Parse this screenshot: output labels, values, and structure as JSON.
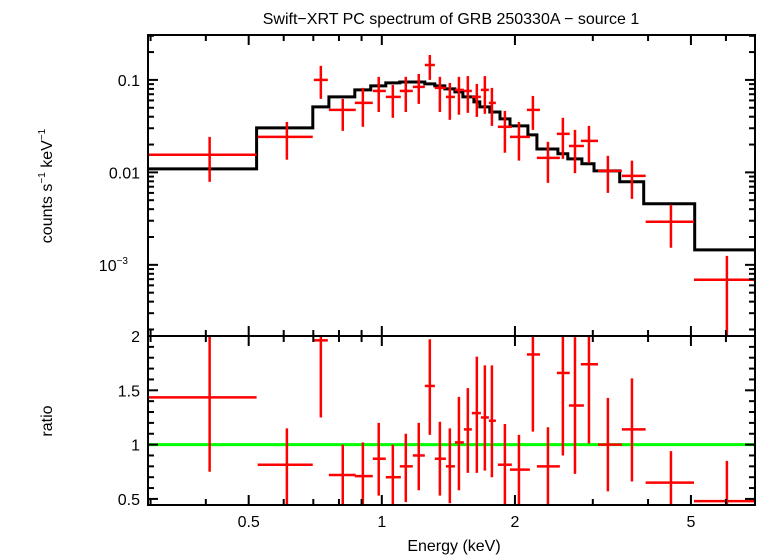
{
  "chart_data": [
    {
      "type": "line",
      "panel": "spectrum",
      "title": "Swift−XRT PC spectrum of GRB 250330A − source 1",
      "ylabel_main": "counts s",
      "ylabel_sup1": "−1",
      "ylabel_mid": " keV",
      "ylabel_sup2": "−1",
      "xscale": "log",
      "yscale": "log",
      "xlim": [
        0.296,
        6.98
      ],
      "ylim": [
        0.00017,
        0.306
      ],
      "yticks": [
        {
          "value": 0.1,
          "label": "0.1"
        },
        {
          "value": 0.01,
          "label": "0.01"
        },
        {
          "value": 0.001,
          "label": "10",
          "sup": "−3"
        }
      ],
      "colors": {
        "data": "#ff0000",
        "model": "#000000"
      },
      "data_points": [
        {
          "xlo": 0.296,
          "xhi": 0.521,
          "x": 0.408,
          "y": 0.0155,
          "ylo": 0.0079,
          "yhi": 0.0242
        },
        {
          "xlo": 0.524,
          "xhi": 0.698,
          "x": 0.61,
          "y": 0.0242,
          "ylo": 0.0137,
          "yhi": 0.0351
        },
        {
          "xlo": 0.702,
          "xhi": 0.755,
          "x": 0.728,
          "y": 0.1,
          "ylo": 0.0624,
          "yhi": 0.142
        },
        {
          "xlo": 0.759,
          "xhi": 0.873,
          "x": 0.816,
          "y": 0.0474,
          "ylo": 0.0281,
          "yhi": 0.0624
        },
        {
          "xlo": 0.869,
          "xhi": 0.954,
          "x": 0.906,
          "y": 0.0564,
          "ylo": 0.0311,
          "yhi": 0.082
        },
        {
          "xlo": 0.954,
          "xhi": 1.021,
          "x": 0.984,
          "y": 0.076,
          "ylo": 0.045,
          "yhi": 0.108
        },
        {
          "xlo": 1.021,
          "xhi": 1.104,
          "x": 1.059,
          "y": 0.0655,
          "ylo": 0.0389,
          "yhi": 0.0883
        },
        {
          "xlo": 1.098,
          "xhi": 1.175,
          "x": 1.133,
          "y": 0.076,
          "ylo": 0.045,
          "yhi": 0.108
        },
        {
          "xlo": 1.175,
          "xhi": 1.251,
          "x": 1.212,
          "y": 0.084,
          "ylo": 0.055,
          "yhi": 0.116
        },
        {
          "xlo": 1.251,
          "xhi": 1.318,
          "x": 1.284,
          "y": 0.145,
          "ylo": 0.1,
          "yhi": 0.186
        },
        {
          "xlo": 1.318,
          "xhi": 1.396,
          "x": 1.353,
          "y": 0.082,
          "ylo": 0.045,
          "yhi": 0.108
        },
        {
          "xlo": 1.396,
          "xhi": 1.463,
          "x": 1.425,
          "y": 0.0655,
          "ylo": 0.037,
          "yhi": 0.0928
        },
        {
          "xlo": 1.463,
          "xhi": 1.533,
          "x": 1.494,
          "y": 0.078,
          "ylo": 0.042,
          "yhi": 0.108
        },
        {
          "xlo": 1.533,
          "xhi": 1.598,
          "x": 1.565,
          "y": 0.076,
          "ylo": 0.044,
          "yhi": 0.11
        },
        {
          "xlo": 1.598,
          "xhi": 1.675,
          "x": 1.64,
          "y": 0.0655,
          "ylo": 0.0398,
          "yhi": 0.0905
        },
        {
          "xlo": 1.675,
          "xhi": 1.746,
          "x": 1.71,
          "y": 0.078,
          "ylo": 0.043,
          "yhi": 0.11
        },
        {
          "xlo": 1.746,
          "xhi": 1.811,
          "x": 1.774,
          "y": 0.0564,
          "ylo": 0.0318,
          "yhi": 0.082
        },
        {
          "xlo": 1.83,
          "xhi": 1.968,
          "x": 1.898,
          "y": 0.0311,
          "ylo": 0.0163,
          "yhi": 0.0462
        },
        {
          "xlo": 1.949,
          "xhi": 2.162,
          "x": 2.042,
          "y": 0.0242,
          "ylo": 0.0134,
          "yhi": 0.0351
        },
        {
          "xlo": 2.128,
          "xhi": 2.278,
          "x": 2.196,
          "y": 0.0474,
          "ylo": 0.0288,
          "yhi": 0.0671
        },
        {
          "xlo": 2.242,
          "xhi": 2.527,
          "x": 2.375,
          "y": 0.01436,
          "ylo": 0.0077,
          "yhi": 0.0214
        },
        {
          "xlo": 2.488,
          "xhi": 2.66,
          "x": 2.567,
          "y": 0.0261,
          "ylo": 0.014,
          "yhi": 0.0389
        },
        {
          "xlo": 2.649,
          "xhi": 2.864,
          "x": 2.734,
          "y": 0.0193,
          "ylo": 0.0098,
          "yhi": 0.0288
        },
        {
          "xlo": 2.819,
          "xhi": 3.082,
          "x": 2.94,
          "y": 0.0219,
          "ylo": 0.01268,
          "yhi": 0.0318
        },
        {
          "xlo": 3.082,
          "xhi": 3.49,
          "x": 3.245,
          "y": 0.01038,
          "ylo": 0.006,
          "yhi": 0.0151
        },
        {
          "xlo": 3.49,
          "xhi": 3.95,
          "x": 3.678,
          "y": 0.00917,
          "ylo": 0.00517,
          "yhi": 0.0134
        },
        {
          "xlo": 3.95,
          "xhi": 5.08,
          "x": 4.506,
          "y": 0.00292,
          "ylo": 0.00153,
          "yhi": 0.00446
        },
        {
          "xlo": 5.08,
          "xhi": 6.98,
          "x": 6.03,
          "y": 0.00069,
          "ylo": 0.0001,
          "yhi": 0.00125
        }
      ],
      "model_steps": [
        [
          0.296,
          0.521,
          0.0109
        ],
        [
          0.521,
          0.698,
          0.0303
        ],
        [
          0.698,
          0.759,
          0.0511
        ],
        [
          0.759,
          0.869,
          0.0655
        ],
        [
          0.869,
          0.944,
          0.078
        ],
        [
          0.944,
          1.021,
          0.0861
        ],
        [
          1.021,
          1.098,
          0.0928
        ],
        [
          1.098,
          1.251,
          0.095
        ],
        [
          1.251,
          1.318,
          0.0905
        ],
        [
          1.318,
          1.388,
          0.0861
        ],
        [
          1.388,
          1.463,
          0.08
        ],
        [
          1.463,
          1.525,
          0.0742
        ],
        [
          1.525,
          1.615,
          0.0655
        ],
        [
          1.615,
          1.666,
          0.0578
        ],
        [
          1.666,
          1.755,
          0.0511
        ],
        [
          1.755,
          1.85,
          0.045
        ],
        [
          1.85,
          1.949,
          0.0379
        ],
        [
          1.949,
          2.14,
          0.0318
        ],
        [
          2.14,
          2.242,
          0.0254
        ],
        [
          2.242,
          2.501,
          0.0179
        ],
        [
          2.501,
          2.633,
          0.0159
        ],
        [
          2.633,
          2.834,
          0.014
        ],
        [
          2.834,
          3.018,
          0.0124
        ],
        [
          3.018,
          3.45,
          0.01038
        ],
        [
          3.45,
          3.91,
          0.0079
        ],
        [
          3.91,
          5.1,
          0.00457
        ],
        [
          5.1,
          6.98,
          0.00145
        ]
      ]
    },
    {
      "type": "line",
      "panel": "ratio",
      "ylabel": "ratio",
      "xlabel": "Energy (keV)",
      "xscale": "log",
      "yscale": "linear",
      "xlim": [
        0.296,
        6.98
      ],
      "ylim": [
        0.444,
        2.0
      ],
      "xticks": [
        {
          "value": 0.5,
          "label": "0.5"
        },
        {
          "value": 1,
          "label": "1"
        },
        {
          "value": 2,
          "label": "2"
        },
        {
          "value": 5,
          "label": "5"
        }
      ],
      "yticks": [
        {
          "value": 2,
          "label": "2"
        },
        {
          "value": 1.5,
          "label": "1.5"
        },
        {
          "value": 1,
          "label": "1"
        },
        {
          "value": 0.5,
          "label": "0.5"
        }
      ],
      "reference_line": 1,
      "colors": {
        "data": "#ff0000",
        "reference": "#00ff00"
      },
      "ratios": [
        [
          1.435,
          0.75,
          2.1
        ],
        [
          0.815,
          0.4,
          1.15
        ],
        [
          1.96,
          1.25,
          2.1
        ],
        [
          0.72,
          0.4,
          1.0
        ],
        [
          0.71,
          0.4,
          1.02
        ],
        [
          0.87,
          0.53,
          1.2
        ],
        [
          0.7,
          0.4,
          1.0
        ],
        [
          0.8,
          0.47,
          1.1
        ],
        [
          0.9,
          0.58,
          1.2
        ],
        [
          1.54,
          1.09,
          1.97
        ],
        [
          0.87,
          0.53,
          1.21
        ],
        [
          0.8,
          0.46,
          1.15
        ],
        [
          1.02,
          0.58,
          1.44
        ],
        [
          1.14,
          0.74,
          1.52
        ],
        [
          1.29,
          0.74,
          1.81
        ],
        [
          1.25,
          0.76,
          1.73
        ],
        [
          1.22,
          0.7,
          1.73
        ],
        [
          0.815,
          0.4,
          1.19
        ],
        [
          0.77,
          0.4,
          1.09
        ],
        [
          1.83,
          1.12,
          2.1
        ],
        [
          0.8,
          0.4,
          1.16
        ],
        [
          1.66,
          0.9,
          2.1
        ],
        [
          1.36,
          0.73,
          1.99
        ],
        [
          1.74,
          1.01,
          2.1
        ],
        [
          1.0,
          0.57,
          1.43
        ],
        [
          1.14,
          0.66,
          1.61
        ],
        [
          0.65,
          0.4,
          0.94
        ],
        [
          0.48,
          0.4,
          0.85
        ]
      ]
    }
  ]
}
